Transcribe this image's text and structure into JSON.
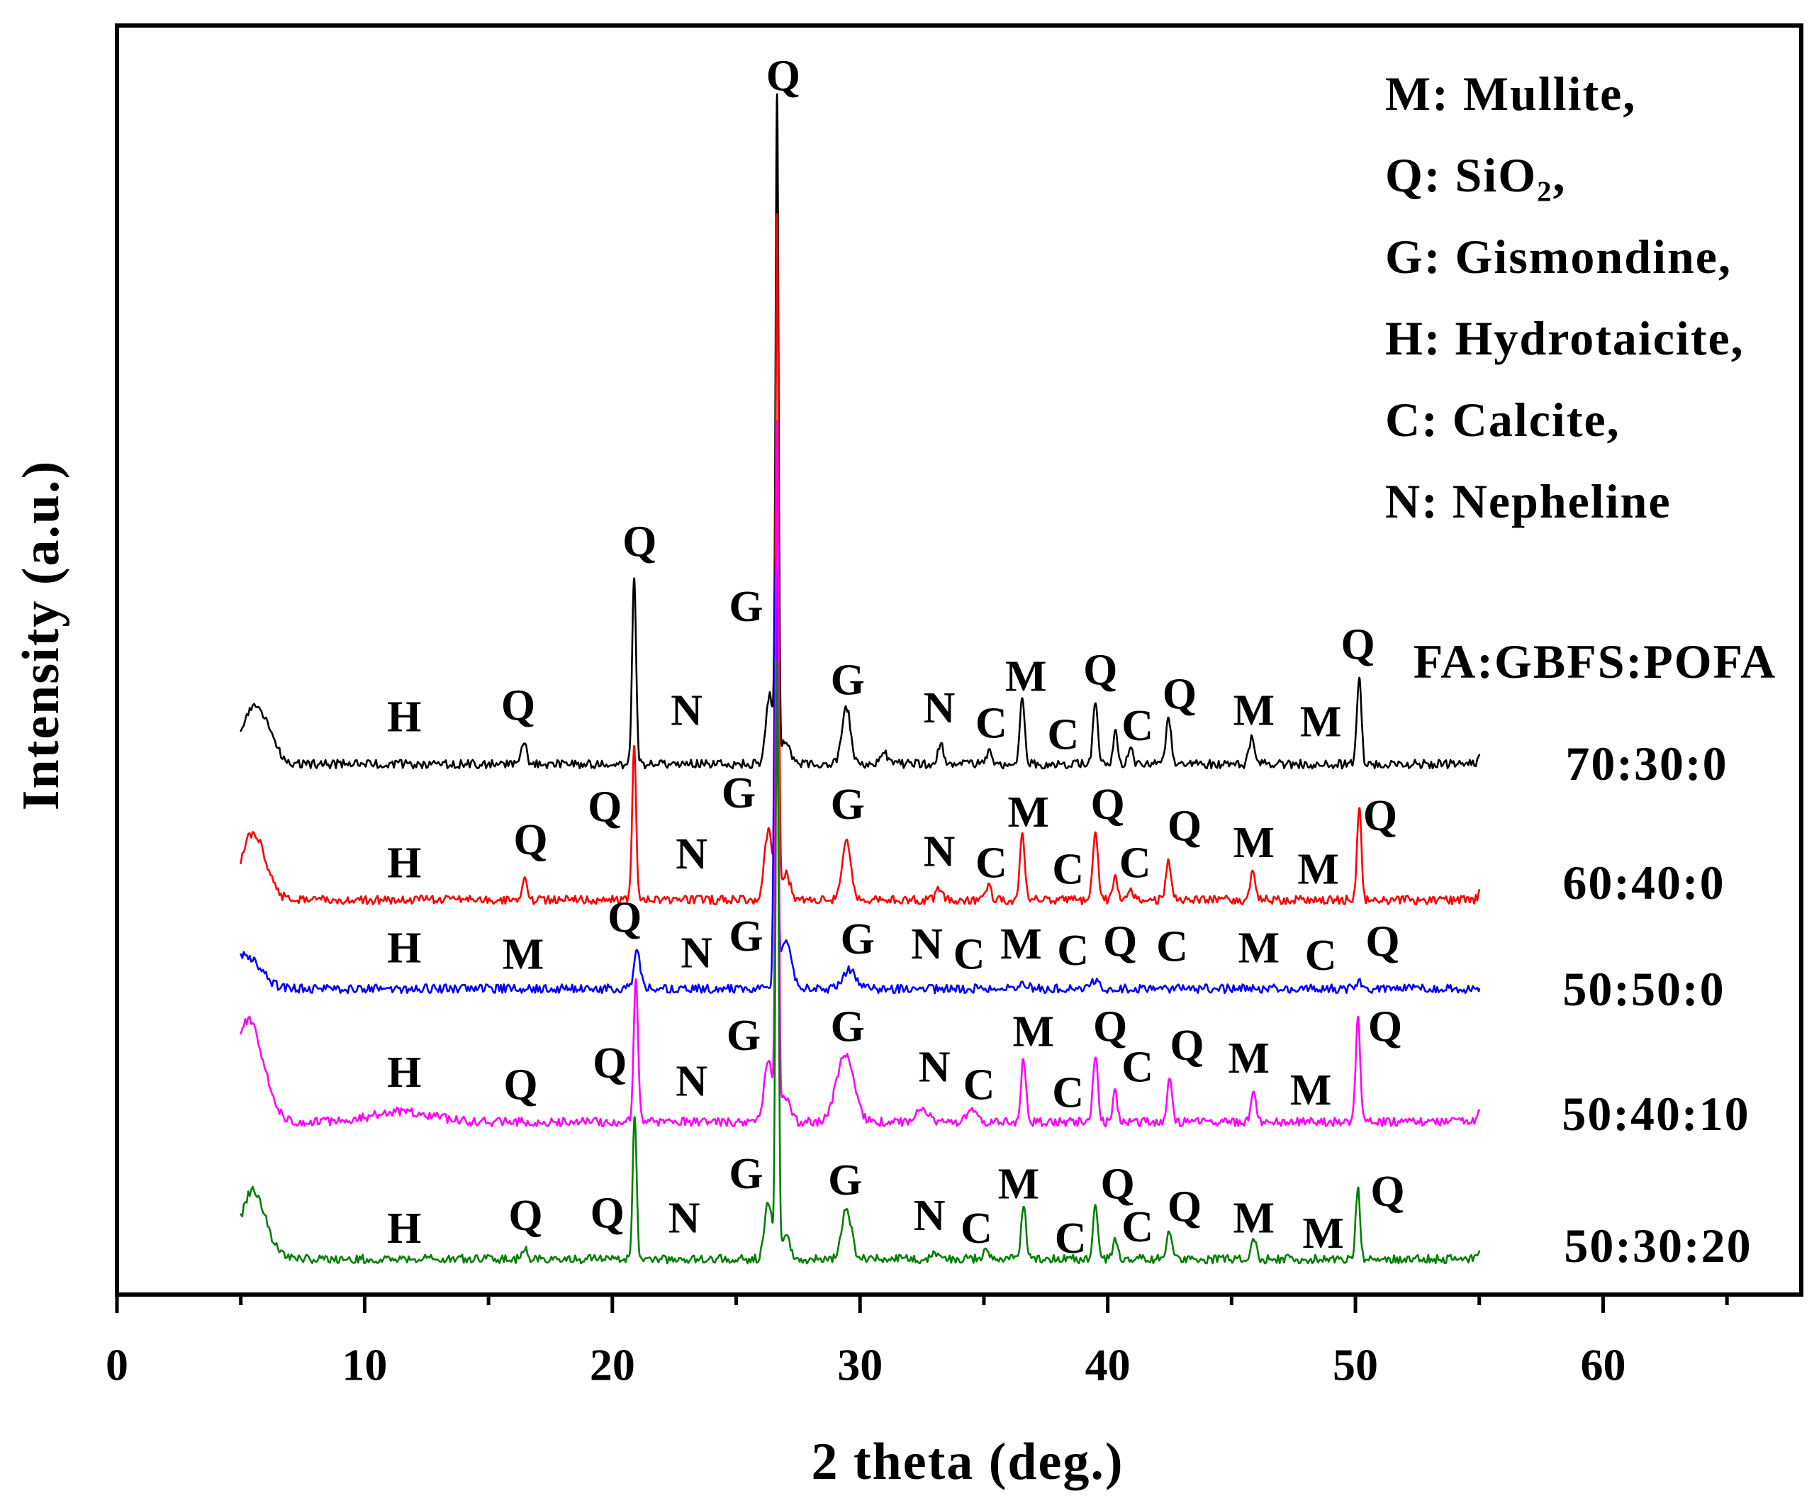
{
  "chart_data": {
    "type": "line",
    "title": "",
    "xlabel": "2 theta (deg.)",
    "ylabel": "Intensity (a.u.)",
    "xlim": [
      0,
      68
    ],
    "ylim": [
      0,
      100
    ],
    "xticks": [
      0,
      10,
      20,
      30,
      40,
      50,
      60
    ],
    "minor_tick_step": 5,
    "x_range": [
      5,
      55
    ],
    "grid": false,
    "legend_header": "FA:GBFS:POFA",
    "phase_key": [
      "M: Mullite,",
      "Q: SiO₂,",
      "G: Gismondine,",
      "H: Hydrotaicite,",
      "C: Calcite,",
      "N: Nepheline"
    ],
    "series": [
      {
        "name": "70:30:0",
        "color": "#000000",
        "offset": 41.8,
        "peaks": [
          {
            "x": 5.6,
            "h": 4.6,
            "w": 0.55
          },
          {
            "x": 16.45,
            "h": 1.8,
            "w": 0.1
          },
          {
            "x": 20.88,
            "h": 14.5,
            "w": 0.08
          },
          {
            "x": 26.35,
            "h": 5.5,
            "w": 0.15
          },
          {
            "x": 26.65,
            "h": 52.0,
            "w": 0.06
          },
          {
            "x": 27.0,
            "h": 2.0,
            "w": 0.18
          },
          {
            "x": 29.45,
            "h": 4.5,
            "w": 0.17
          },
          {
            "x": 31.0,
            "h": 0.8,
            "w": 0.15
          },
          {
            "x": 33.25,
            "h": 1.6,
            "w": 0.12
          },
          {
            "x": 35.2,
            "h": 1.1,
            "w": 0.1
          },
          {
            "x": 36.55,
            "h": 5.2,
            "w": 0.1
          },
          {
            "x": 39.5,
            "h": 4.9,
            "w": 0.1
          },
          {
            "x": 40.3,
            "h": 2.5,
            "w": 0.09
          },
          {
            "x": 40.9,
            "h": 1.3,
            "w": 0.1
          },
          {
            "x": 42.45,
            "h": 3.8,
            "w": 0.1
          },
          {
            "x": 45.8,
            "h": 2.0,
            "w": 0.1
          },
          {
            "x": 50.15,
            "h": 6.8,
            "w": 0.09
          },
          {
            "x": 55.2,
            "h": 1.8,
            "w": 0.15
          }
        ]
      },
      {
        "name": "60:40:0",
        "color": "#ff0000",
        "offset": 31.1,
        "peaks": [
          {
            "x": 5.5,
            "h": 5.3,
            "w": 0.5
          },
          {
            "x": 16.45,
            "h": 1.5,
            "w": 0.1
          },
          {
            "x": 20.88,
            "h": 12.3,
            "w": 0.08
          },
          {
            "x": 26.3,
            "h": 5.5,
            "w": 0.16
          },
          {
            "x": 26.65,
            "h": 53.5,
            "w": 0.06
          },
          {
            "x": 27.0,
            "h": 2.0,
            "w": 0.18
          },
          {
            "x": 29.45,
            "h": 4.7,
            "w": 0.17
          },
          {
            "x": 33.2,
            "h": 0.8,
            "w": 0.12
          },
          {
            "x": 35.2,
            "h": 1.2,
            "w": 0.1
          },
          {
            "x": 36.55,
            "h": 5.0,
            "w": 0.1
          },
          {
            "x": 39.5,
            "h": 5.5,
            "w": 0.1
          },
          {
            "x": 40.3,
            "h": 2.0,
            "w": 0.09
          },
          {
            "x": 40.9,
            "h": 1.0,
            "w": 0.1
          },
          {
            "x": 42.45,
            "h": 3.1,
            "w": 0.1
          },
          {
            "x": 45.85,
            "h": 2.0,
            "w": 0.1
          },
          {
            "x": 50.15,
            "h": 7.2,
            "w": 0.09
          },
          {
            "x": 55.2,
            "h": 1.4,
            "w": 0.15
          }
        ]
      },
      {
        "name": "50:50:0",
        "color": "#0000ff",
        "offset": 24.1,
        "peaks": [
          {
            "x": 5.2,
            "h": 2.6,
            "w": 0.6
          },
          {
            "x": 21.0,
            "h": 3.2,
            "w": 0.12
          },
          {
            "x": 26.6,
            "h": 33.0,
            "w": 0.07
          },
          {
            "x": 27.0,
            "h": 4.0,
            "w": 0.22
          },
          {
            "x": 29.6,
            "h": 1.5,
            "w": 0.25
          },
          {
            "x": 36.6,
            "h": 0.5,
            "w": 0.15
          },
          {
            "x": 39.5,
            "h": 0.6,
            "w": 0.15
          },
          {
            "x": 50.15,
            "h": 0.6,
            "w": 0.15
          }
        ]
      },
      {
        "name": "50:40:10",
        "color": "#ff00ff",
        "offset": 13.6,
        "peaks": [
          {
            "x": 5.3,
            "h": 8.0,
            "w": 0.6
          },
          {
            "x": 11.5,
            "h": 0.8,
            "w": 1.2
          },
          {
            "x": 20.95,
            "h": 11.0,
            "w": 0.09
          },
          {
            "x": 26.3,
            "h": 5.0,
            "w": 0.16
          },
          {
            "x": 26.65,
            "h": 54.6,
            "w": 0.06
          },
          {
            "x": 27.0,
            "h": 2.0,
            "w": 0.18
          },
          {
            "x": 29.4,
            "h": 5.3,
            "w": 0.35
          },
          {
            "x": 32.5,
            "h": 1.0,
            "w": 0.25
          },
          {
            "x": 34.5,
            "h": 0.8,
            "w": 0.2
          },
          {
            "x": 36.6,
            "h": 5.0,
            "w": 0.1
          },
          {
            "x": 39.5,
            "h": 5.2,
            "w": 0.1
          },
          {
            "x": 40.3,
            "h": 2.3,
            "w": 0.09
          },
          {
            "x": 42.5,
            "h": 3.5,
            "w": 0.1
          },
          {
            "x": 45.9,
            "h": 2.4,
            "w": 0.1
          },
          {
            "x": 50.1,
            "h": 8.2,
            "w": 0.09
          },
          {
            "x": 55.2,
            "h": 2.0,
            "w": 0.15
          }
        ]
      },
      {
        "name": "50:30:20",
        "color": "#008000",
        "offset": 2.8,
        "peaks": [
          {
            "x": 5.5,
            "h": 5.4,
            "w": 0.5
          },
          {
            "x": 16.45,
            "h": 0.8,
            "w": 0.1
          },
          {
            "x": 20.9,
            "h": 11.2,
            "w": 0.08
          },
          {
            "x": 26.3,
            "h": 4.5,
            "w": 0.15
          },
          {
            "x": 26.65,
            "h": 46.8,
            "w": 0.06
          },
          {
            "x": 27.0,
            "h": 1.8,
            "w": 0.18
          },
          {
            "x": 29.45,
            "h": 4.0,
            "w": 0.2
          },
          {
            "x": 33.0,
            "h": 0.6,
            "w": 0.15
          },
          {
            "x": 35.1,
            "h": 0.7,
            "w": 0.1
          },
          {
            "x": 36.6,
            "h": 4.2,
            "w": 0.1
          },
          {
            "x": 39.5,
            "h": 4.2,
            "w": 0.1
          },
          {
            "x": 40.3,
            "h": 1.5,
            "w": 0.09
          },
          {
            "x": 42.5,
            "h": 2.3,
            "w": 0.1
          },
          {
            "x": 45.9,
            "h": 1.4,
            "w": 0.1
          },
          {
            "x": 50.1,
            "h": 5.4,
            "w": 0.09
          },
          {
            "x": 55.2,
            "h": 1.2,
            "w": 0.15
          }
        ]
      }
    ],
    "annotations": [
      {
        "text": "Q",
        "x": 26.9,
        "y": 96.0
      },
      {
        "text": "H",
        "x": 11.6,
        "y": 45.5
      },
      {
        "text": "Q",
        "x": 16.2,
        "y": 46.4
      },
      {
        "text": "Q",
        "x": 21.1,
        "y": 59.3
      },
      {
        "text": "N",
        "x": 23.0,
        "y": 46.0
      },
      {
        "text": "G",
        "x": 25.4,
        "y": 54.2
      },
      {
        "text": "G",
        "x": 29.5,
        "y": 48.4
      },
      {
        "text": "N",
        "x": 33.2,
        "y": 46.2
      },
      {
        "text": "C",
        "x": 35.3,
        "y": 45.0
      },
      {
        "text": "M",
        "x": 36.7,
        "y": 48.7
      },
      {
        "text": "C",
        "x": 38.2,
        "y": 44.1
      },
      {
        "text": "Q",
        "x": 39.7,
        "y": 49.2
      },
      {
        "text": "C",
        "x": 41.2,
        "y": 44.8
      },
      {
        "text": "Q",
        "x": 42.9,
        "y": 47.3
      },
      {
        "text": "M",
        "x": 45.9,
        "y": 46.0
      },
      {
        "text": "M",
        "x": 48.6,
        "y": 45.1
      },
      {
        "text": "Q",
        "x": 50.1,
        "y": 51.2
      },
      {
        "text": "H",
        "x": 11.6,
        "y": 34.0
      },
      {
        "text": "Q",
        "x": 16.7,
        "y": 35.8
      },
      {
        "text": "Q",
        "x": 19.7,
        "y": 38.4
      },
      {
        "text": "N",
        "x": 23.2,
        "y": 34.7
      },
      {
        "text": "G",
        "x": 25.1,
        "y": 39.5
      },
      {
        "text": "G",
        "x": 29.5,
        "y": 38.6
      },
      {
        "text": "N",
        "x": 33.2,
        "y": 34.9
      },
      {
        "text": "C",
        "x": 35.3,
        "y": 34.0
      },
      {
        "text": "M",
        "x": 36.8,
        "y": 38.0
      },
      {
        "text": "C",
        "x": 38.4,
        "y": 33.5
      },
      {
        "text": "Q",
        "x": 40.0,
        "y": 38.6
      },
      {
        "text": "C",
        "x": 41.1,
        "y": 34.0
      },
      {
        "text": "Q",
        "x": 43.1,
        "y": 36.9
      },
      {
        "text": "M",
        "x": 45.9,
        "y": 35.6
      },
      {
        "text": "M",
        "x": 48.5,
        "y": 33.5
      },
      {
        "text": "Q",
        "x": 51.0,
        "y": 37.7
      },
      {
        "text": "H",
        "x": 11.6,
        "y": 27.3
      },
      {
        "text": "M",
        "x": 16.4,
        "y": 26.8
      },
      {
        "text": "Q",
        "x": 20.5,
        "y": 29.7
      },
      {
        "text": "N",
        "x": 23.4,
        "y": 26.9
      },
      {
        "text": "G",
        "x": 25.4,
        "y": 28.2
      },
      {
        "text": "G",
        "x": 29.9,
        "y": 28.0
      },
      {
        "text": "N",
        "x": 32.7,
        "y": 27.6
      },
      {
        "text": "C",
        "x": 34.4,
        "y": 26.8
      },
      {
        "text": "M",
        "x": 36.5,
        "y": 27.6
      },
      {
        "text": "C",
        "x": 38.6,
        "y": 27.1
      },
      {
        "text": "Q",
        "x": 40.5,
        "y": 27.8
      },
      {
        "text": "C",
        "x": 42.6,
        "y": 27.4
      },
      {
        "text": "M",
        "x": 46.1,
        "y": 27.3
      },
      {
        "text": "C",
        "x": 48.6,
        "y": 26.7
      },
      {
        "text": "Q",
        "x": 51.1,
        "y": 27.8
      },
      {
        "text": "H",
        "x": 11.6,
        "y": 17.5
      },
      {
        "text": "Q",
        "x": 16.3,
        "y": 16.5
      },
      {
        "text": "Q",
        "x": 19.9,
        "y": 18.2
      },
      {
        "text": "N",
        "x": 23.2,
        "y": 16.8
      },
      {
        "text": "G",
        "x": 25.3,
        "y": 20.4
      },
      {
        "text": "G",
        "x": 29.5,
        "y": 21.1
      },
      {
        "text": "N",
        "x": 33.0,
        "y": 17.9
      },
      {
        "text": "C",
        "x": 34.8,
        "y": 16.5
      },
      {
        "text": "M",
        "x": 37.0,
        "y": 20.7
      },
      {
        "text": "C",
        "x": 38.4,
        "y": 15.9
      },
      {
        "text": "Q",
        "x": 40.1,
        "y": 21.1
      },
      {
        "text": "C",
        "x": 41.2,
        "y": 17.9
      },
      {
        "text": "Q",
        "x": 43.2,
        "y": 19.6
      },
      {
        "text": "M",
        "x": 45.7,
        "y": 18.6
      },
      {
        "text": "M",
        "x": 48.2,
        "y": 16.1
      },
      {
        "text": "Q",
        "x": 51.2,
        "y": 21.1
      },
      {
        "text": "H",
        "x": 11.6,
        "y": 5.2
      },
      {
        "text": "Q",
        "x": 16.5,
        "y": 6.2
      },
      {
        "text": "Q",
        "x": 19.8,
        "y": 6.4
      },
      {
        "text": "N",
        "x": 22.9,
        "y": 6.0
      },
      {
        "text": "G",
        "x": 25.4,
        "y": 9.5
      },
      {
        "text": "G",
        "x": 29.4,
        "y": 9.0
      },
      {
        "text": "N",
        "x": 32.8,
        "y": 6.2
      },
      {
        "text": "C",
        "x": 34.7,
        "y": 5.2
      },
      {
        "text": "M",
        "x": 36.4,
        "y": 8.7
      },
      {
        "text": "C",
        "x": 38.5,
        "y": 4.4
      },
      {
        "text": "Q",
        "x": 40.4,
        "y": 8.7
      },
      {
        "text": "C",
        "x": 41.2,
        "y": 5.3
      },
      {
        "text": "Q",
        "x": 43.1,
        "y": 6.9
      },
      {
        "text": "M",
        "x": 45.9,
        "y": 6.0
      },
      {
        "text": "M",
        "x": 48.7,
        "y": 4.8
      },
      {
        "text": "Q",
        "x": 51.3,
        "y": 8.1
      }
    ]
  }
}
